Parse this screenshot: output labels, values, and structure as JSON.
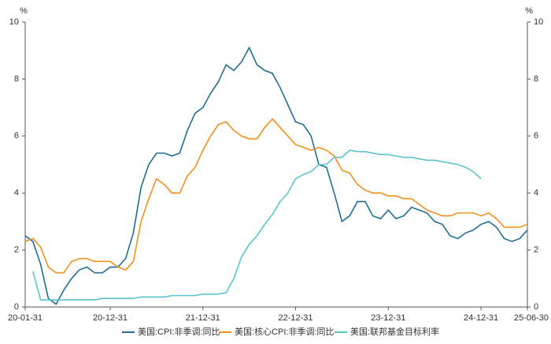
{
  "chart_data": {
    "type": "line",
    "y_unit": "%",
    "y2_unit": "%",
    "categories": [
      "20-01-31",
      null,
      null,
      null,
      null,
      null,
      null,
      null,
      null,
      null,
      null,
      "20-12-31",
      null,
      null,
      null,
      null,
      null,
      null,
      null,
      null,
      null,
      null,
      null,
      "21-12-31",
      null,
      null,
      null,
      null,
      null,
      null,
      null,
      null,
      null,
      null,
      null,
      "22-12-31",
      null,
      null,
      null,
      null,
      null,
      null,
      null,
      null,
      null,
      null,
      null,
      "23-12-31",
      null,
      null,
      null,
      null,
      null,
      null,
      null,
      null,
      null,
      null,
      null,
      "24-12-31",
      null,
      null,
      null,
      null,
      null,
      "25-06-30"
    ],
    "series": [
      {
        "name": "美国:CPI:非季调:同比",
        "color": "#1f6e94",
        "values": [
          2.5,
          2.3,
          1.5,
          0.3,
          0.1,
          0.6,
          1.0,
          1.3,
          1.4,
          1.2,
          1.2,
          1.4,
          1.4,
          1.7,
          2.6,
          4.2,
          5.0,
          5.4,
          5.4,
          5.3,
          5.4,
          6.2,
          6.8,
          7.0,
          7.5,
          7.9,
          8.5,
          8.3,
          8.6,
          9.1,
          8.5,
          8.3,
          8.2,
          7.7,
          7.1,
          6.5,
          6.4,
          6.0,
          5.0,
          4.9,
          4.0,
          3.0,
          3.2,
          3.7,
          3.7,
          3.2,
          3.1,
          3.4,
          3.1,
          3.2,
          3.5,
          3.4,
          3.3,
          3.0,
          2.9,
          2.5,
          2.4,
          2.6,
          2.7,
          2.9,
          3.0,
          2.8,
          2.4,
          2.3,
          2.4,
          2.7
        ]
      },
      {
        "name": "美国:核心CPI:非季调:同比",
        "color": "#f0901e",
        "values": [
          2.3,
          2.4,
          2.1,
          1.4,
          1.2,
          1.2,
          1.6,
          1.7,
          1.7,
          1.6,
          1.6,
          1.6,
          1.4,
          1.3,
          1.6,
          3.0,
          3.8,
          4.5,
          4.3,
          4.0,
          4.0,
          4.6,
          4.9,
          5.5,
          6.0,
          6.4,
          6.5,
          6.2,
          6.0,
          5.9,
          5.9,
          6.3,
          6.6,
          6.3,
          6.0,
          5.7,
          5.6,
          5.5,
          5.6,
          5.5,
          5.3,
          4.8,
          4.7,
          4.3,
          4.1,
          4.0,
          4.0,
          3.9,
          3.9,
          3.8,
          3.8,
          3.6,
          3.4,
          3.3,
          3.2,
          3.2,
          3.3,
          3.3,
          3.3,
          3.2,
          3.3,
          3.1,
          2.8,
          2.8,
          2.8,
          2.9
        ]
      },
      {
        "name": "美国:联邦基金目标利率",
        "color": "#5bc3cc",
        "values": [
          null,
          1.25,
          0.25,
          0.25,
          0.25,
          0.25,
          0.25,
          0.25,
          0.25,
          0.25,
          0.3,
          0.3,
          0.3,
          0.3,
          0.3,
          0.35,
          0.35,
          0.35,
          0.35,
          0.4,
          0.4,
          0.4,
          0.4,
          0.45,
          0.45,
          0.45,
          0.5,
          1.0,
          1.75,
          2.2,
          2.5,
          2.9,
          3.25,
          3.7,
          4.0,
          4.5,
          4.65,
          4.75,
          5.0,
          5.0,
          5.25,
          5.25,
          5.5,
          5.45,
          5.45,
          5.4,
          5.35,
          5.35,
          5.3,
          5.25,
          5.25,
          5.2,
          5.15,
          5.15,
          5.1,
          5.05,
          5.0,
          4.9,
          4.75,
          4.5,
          null,
          null,
          null,
          null,
          null,
          null
        ]
      }
    ],
    "ylim": [
      0,
      10
    ],
    "yticks": [
      0,
      2,
      4,
      6,
      8,
      10
    ],
    "y2lim": [
      0,
      10
    ],
    "y2ticks": [
      0,
      2,
      4,
      6,
      8,
      10
    ],
    "legend": "bottom"
  }
}
